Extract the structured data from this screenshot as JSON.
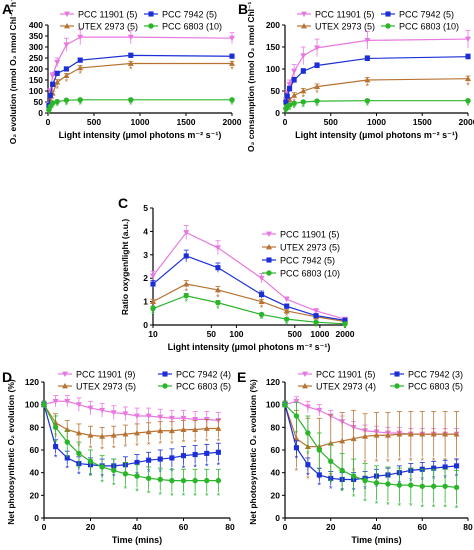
{
  "colors": {
    "PCC 11901": "#e878e0",
    "UTEX 2973": "#b87333",
    "PCC 7942": "#1c2fd6",
    "PCC 6803": "#2bb52b",
    "asterisk": "#2bb52b"
  },
  "chart_data": [
    {
      "panel": "A",
      "type": "line",
      "xlabel": "Light intensity (µmol photons m⁻² s⁻¹)",
      "ylabel": "O₂ evolution (nmol O₂ nmol Chl⁻¹ h⁻¹)",
      "xlim": [
        0,
        2000
      ],
      "ylim": [
        0,
        400
      ],
      "xticks": [
        "0",
        "500",
        "1000",
        "1500",
        "2000"
      ],
      "yticks": [
        "0",
        "50",
        "100",
        "150",
        "200",
        "250",
        "300",
        "350",
        "400"
      ],
      "legend_columns": 2,
      "series": [
        {
          "name": "PCC 11901 (5)",
          "x": [
            10,
            25,
            50,
            100,
            200,
            350,
            900,
            2000
          ],
          "y": [
            40,
            100,
            170,
            230,
            310,
            345,
            345,
            340
          ],
          "err": [
            5,
            10,
            15,
            20,
            30,
            35,
            30,
            25
          ],
          "stars": false
        },
        {
          "name": "UTEX 2973 (5)",
          "x": [
            10,
            25,
            50,
            100,
            200,
            350,
            900,
            2000
          ],
          "y": [
            20,
            50,
            90,
            140,
            170,
            205,
            225,
            225
          ],
          "err": [
            5,
            8,
            10,
            12,
            10,
            10,
            10,
            10
          ],
          "stars": true
        },
        {
          "name": "PCC 7942 (5)",
          "x": [
            10,
            25,
            50,
            100,
            200,
            350,
            900,
            2000
          ],
          "y": [
            35,
            80,
            130,
            180,
            200,
            240,
            262,
            258
          ],
          "err": [
            5,
            8,
            10,
            10,
            10,
            10,
            10,
            10
          ],
          "stars": false
        },
        {
          "name": "PCC 6803 (10)",
          "x": [
            10,
            25,
            50,
            100,
            200,
            350,
            900,
            2000
          ],
          "y": [
            15,
            30,
            45,
            52,
            58,
            60,
            60,
            60
          ],
          "err": [
            3,
            4,
            5,
            5,
            5,
            5,
            5,
            5
          ],
          "stars": true
        }
      ]
    },
    {
      "panel": "B",
      "type": "line",
      "xlabel": "Light intensity (µmol photons m⁻² s⁻¹)",
      "ylabel": "O₂ consumption (nmol O₂ nmol Chl⁻¹ h⁻¹)",
      "xlim": [
        0,
        2000
      ],
      "ylim": [
        0,
        200
      ],
      "xticks": [
        "0",
        "500",
        "1000",
        "1500",
        "2000"
      ],
      "yticks": [
        "0",
        "50",
        "100",
        "150",
        "200"
      ],
      "legend_columns": 2,
      "series": [
        {
          "name": "PCC 11901 (5)",
          "x": [
            10,
            25,
            50,
            100,
            200,
            350,
            900,
            2000
          ],
          "y": [
            30,
            45,
            65,
            95,
            130,
            148,
            165,
            168
          ],
          "err": [
            5,
            8,
            10,
            15,
            20,
            20,
            20,
            20
          ],
          "stars": false
        },
        {
          "name": "UTEX 2973 (5)",
          "x": [
            10,
            25,
            50,
            100,
            200,
            350,
            900,
            2000
          ],
          "y": [
            15,
            22,
            30,
            40,
            50,
            60,
            75,
            78
          ],
          "err": [
            3,
            4,
            5,
            6,
            6,
            6,
            6,
            6
          ],
          "stars": true
        },
        {
          "name": "PCC 7942 (5)",
          "x": [
            10,
            25,
            50,
            100,
            200,
            350,
            900,
            2000
          ],
          "y": [
            25,
            38,
            55,
            75,
            95,
            108,
            124,
            128
          ],
          "err": [
            4,
            5,
            6,
            6,
            6,
            6,
            6,
            6
          ],
          "stars": false
        },
        {
          "name": "PCC 6803 (10)",
          "x": [
            10,
            25,
            50,
            100,
            200,
            350,
            900,
            2000
          ],
          "y": [
            10,
            15,
            18,
            22,
            25,
            27,
            28,
            28
          ],
          "err": [
            2,
            3,
            3,
            3,
            3,
            3,
            3,
            3
          ],
          "stars": true
        }
      ]
    },
    {
      "panel": "C",
      "type": "line",
      "xlabel": "Light intensity (µmol photons m⁻² s⁻¹)",
      "ylabel": "Ratio oxygen/light (a.u.)",
      "xscale": "log",
      "xlim": [
        10,
        2000
      ],
      "ylim": [
        0,
        5
      ],
      "xticks": [
        "10",
        "50",
        "100",
        "500",
        "1000",
        "2000"
      ],
      "yticks": [
        "0",
        "1",
        "2",
        "3",
        "4",
        "5"
      ],
      "legend_columns": 1,
      "series": [
        {
          "name": "PCC 11901 (5)",
          "x": [
            10,
            25,
            60,
            200,
            400,
            900,
            2000
          ],
          "y": [
            2.1,
            3.95,
            3.3,
            2.0,
            1.1,
            0.6,
            0.25
          ],
          "err": [
            0.2,
            0.3,
            0.3,
            0.2,
            0.1,
            0.1,
            0.05
          ],
          "stars": false
        },
        {
          "name": "UTEX 2973 (5)",
          "x": [
            10,
            25,
            60,
            200,
            400,
            900,
            2000
          ],
          "y": [
            1.0,
            1.75,
            1.5,
            1.0,
            0.6,
            0.35,
            0.15
          ],
          "err": [
            0.1,
            0.15,
            0.15,
            0.1,
            0.05,
            0.05,
            0.03
          ],
          "stars": true
        },
        {
          "name": "PCC 7942 (5)",
          "x": [
            10,
            25,
            60,
            200,
            400,
            900,
            2000
          ],
          "y": [
            1.75,
            2.95,
            2.45,
            1.3,
            0.8,
            0.4,
            0.2
          ],
          "err": [
            0.15,
            0.25,
            0.2,
            0.15,
            0.1,
            0.05,
            0.03
          ],
          "stars": false
        },
        {
          "name": "PCC 6803 (10)",
          "x": [
            10,
            25,
            60,
            200,
            400,
            900,
            2000
          ],
          "y": [
            0.7,
            1.25,
            0.95,
            0.45,
            0.25,
            0.12,
            0.05
          ],
          "err": [
            0.1,
            0.1,
            0.1,
            0.05,
            0.05,
            0.03,
            0.02
          ],
          "stars": true
        }
      ]
    },
    {
      "panel": "D",
      "type": "line",
      "xlabel": "Time (mins)",
      "ylabel": "Net photosynthetic O₂ evolution (%)",
      "xlim": [
        0,
        80
      ],
      "ylim": [
        0,
        120
      ],
      "xticks": [
        "0",
        "20",
        "40",
        "60",
        "80"
      ],
      "yticks": [
        "0",
        "20",
        "40",
        "60",
        "80",
        "100",
        "120"
      ],
      "legend_columns": 2,
      "series": [
        {
          "name": "PCC 11901 (9)",
          "x": [
            0,
            5,
            10,
            15,
            20,
            25,
            30,
            35,
            40,
            45,
            50,
            55,
            60,
            65,
            70,
            75
          ],
          "y": [
            100,
            103,
            103,
            100,
            97,
            95,
            93,
            92,
            90,
            90,
            89,
            88,
            88,
            87,
            87,
            86
          ],
          "err": [
            3,
            5,
            5,
            6,
            6,
            6,
            6,
            6,
            7,
            7,
            7,
            7,
            7,
            7,
            7,
            7
          ],
          "stars": false
        },
        {
          "name": "UTEX 2973 (5)",
          "x": [
            0,
            5,
            10,
            15,
            20,
            25,
            30,
            35,
            40,
            45,
            50,
            55,
            60,
            65,
            70,
            75
          ],
          "y": [
            100,
            84,
            78,
            75,
            73,
            72,
            73,
            74,
            75,
            76,
            77,
            77,
            78,
            78,
            79,
            79
          ],
          "err": [
            3,
            8,
            8,
            8,
            8,
            8,
            8,
            8,
            8,
            8,
            8,
            8,
            8,
            8,
            8,
            8
          ],
          "stars": true
        },
        {
          "name": "PCC 7942 (4)",
          "x": [
            0,
            5,
            10,
            15,
            20,
            25,
            30,
            35,
            40,
            45,
            50,
            55,
            60,
            65,
            70,
            75
          ],
          "y": [
            100,
            63,
            53,
            48,
            47,
            46,
            46,
            47,
            49,
            51,
            52,
            53,
            55,
            56,
            57,
            58
          ],
          "err": [
            3,
            6,
            6,
            6,
            6,
            6,
            6,
            7,
            7,
            7,
            8,
            8,
            8,
            8,
            8,
            8
          ],
          "stars": true
        },
        {
          "name": "PCC 6803 (5)",
          "x": [
            0,
            5,
            10,
            15,
            20,
            25,
            30,
            35,
            40,
            45,
            50,
            55,
            60,
            65,
            70,
            75
          ],
          "y": [
            100,
            80,
            67,
            57,
            50,
            45,
            42,
            39,
            37,
            35,
            34,
            33,
            33,
            33,
            33,
            33
          ],
          "err": [
            3,
            10,
            10,
            10,
            10,
            10,
            10,
            10,
            10,
            10,
            10,
            10,
            10,
            10,
            10,
            10
          ],
          "stars": true
        }
      ]
    },
    {
      "panel": "E",
      "type": "line",
      "xlabel": "Time (mins)",
      "ylabel": "Net photosynthetic O₂ evolution (%)",
      "xlim": [
        0,
        80
      ],
      "ylim": [
        0,
        120
      ],
      "xticks": [
        "0",
        "20",
        "40",
        "60",
        "80"
      ],
      "yticks": [
        "0",
        "20",
        "40",
        "60",
        "80",
        "100",
        "120"
      ],
      "legend_columns": 2,
      "series": [
        {
          "name": "PCC 11901 (5)",
          "x": [
            0,
            5,
            10,
            15,
            20,
            25,
            30,
            35,
            40,
            45,
            50,
            55,
            60,
            65,
            70,
            75
          ],
          "y": [
            100,
            103,
            98,
            95,
            90,
            85,
            80,
            77,
            76,
            75,
            75,
            74,
            74,
            74,
            74,
            74
          ],
          "err": [
            3,
            4,
            5,
            5,
            5,
            5,
            5,
            5,
            5,
            5,
            5,
            5,
            5,
            5,
            5,
            5
          ],
          "stars": false
        },
        {
          "name": "UTEX 2973 (4)",
          "x": [
            0,
            5,
            10,
            15,
            20,
            25,
            30,
            35,
            40,
            45,
            50,
            55,
            60,
            65,
            70,
            75
          ],
          "y": [
            100,
            70,
            63,
            63,
            66,
            68,
            70,
            72,
            73,
            73,
            74,
            74,
            74,
            74,
            74,
            74
          ],
          "err": [
            3,
            25,
            25,
            25,
            25,
            25,
            25,
            20,
            20,
            20,
            20,
            20,
            20,
            20,
            20,
            20
          ],
          "stars": true
        },
        {
          "name": "PCC 7942 (3)",
          "x": [
            0,
            5,
            10,
            15,
            20,
            25,
            30,
            35,
            40,
            45,
            50,
            55,
            60,
            65,
            70,
            75
          ],
          "y": [
            100,
            62,
            47,
            38,
            35,
            34,
            34,
            35,
            37,
            38,
            40,
            42,
            43,
            44,
            45,
            46
          ],
          "err": [
            3,
            6,
            6,
            6,
            6,
            6,
            6,
            6,
            6,
            6,
            6,
            6,
            6,
            6,
            6,
            6
          ],
          "stars": true
        },
        {
          "name": "PCC 6803 (5)",
          "x": [
            0,
            5,
            10,
            15,
            20,
            25,
            30,
            35,
            40,
            45,
            50,
            55,
            60,
            65,
            70,
            75
          ],
          "y": [
            100,
            90,
            75,
            60,
            50,
            42,
            37,
            33,
            31,
            30,
            29,
            29,
            28,
            28,
            28,
            27
          ],
          "err": [
            3,
            12,
            15,
            15,
            15,
            15,
            15,
            15,
            15,
            15,
            15,
            15,
            15,
            15,
            15,
            15
          ],
          "stars": true
        }
      ]
    }
  ]
}
